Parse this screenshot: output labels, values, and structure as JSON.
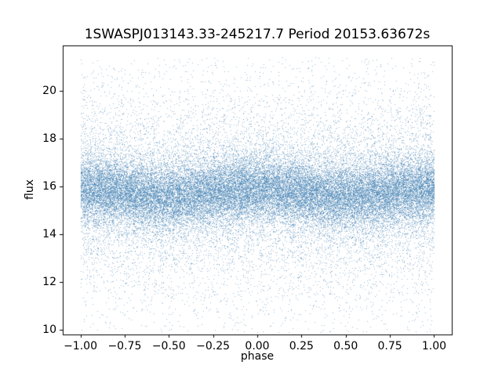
{
  "chart_data": {
    "type": "scatter",
    "title": "1SWASPJ013143.33-245217.7 Period 20153.63672s",
    "xlabel": "phase",
    "ylabel": "flux",
    "xlim": [
      -1.1,
      1.1
    ],
    "ylim": [
      9.8,
      21.9
    ],
    "xticks": [
      -1.0,
      -0.75,
      -0.5,
      -0.25,
      0.0,
      0.25,
      0.5,
      0.75,
      1.0
    ],
    "xtick_labels": [
      "−1.00",
      "−0.75",
      "−0.50",
      "−0.25",
      "0.00",
      "0.25",
      "0.50",
      "0.75",
      "1.00"
    ],
    "yticks": [
      10,
      12,
      14,
      16,
      18,
      20
    ],
    "ytick_labels": [
      "10",
      "12",
      "14",
      "16",
      "18",
      "20"
    ],
    "grid": false,
    "legend": null,
    "marker_color": "#3d7eb2",
    "marker_alpha": 0.5,
    "marker_size_px": 1,
    "x_data_range": [
      -1.0,
      1.0
    ],
    "distribution": {
      "n_points": 42000,
      "seed": 7,
      "flux_core_mean": 15.75,
      "flux_core_sigma": 0.68,
      "flux_tail_sigma": 1.9,
      "tail_fraction": 0.3,
      "uniform_fraction": 0.05,
      "flux_min": 9.9,
      "flux_max": 21.4,
      "modulation_amplitude": 0.15
    }
  }
}
